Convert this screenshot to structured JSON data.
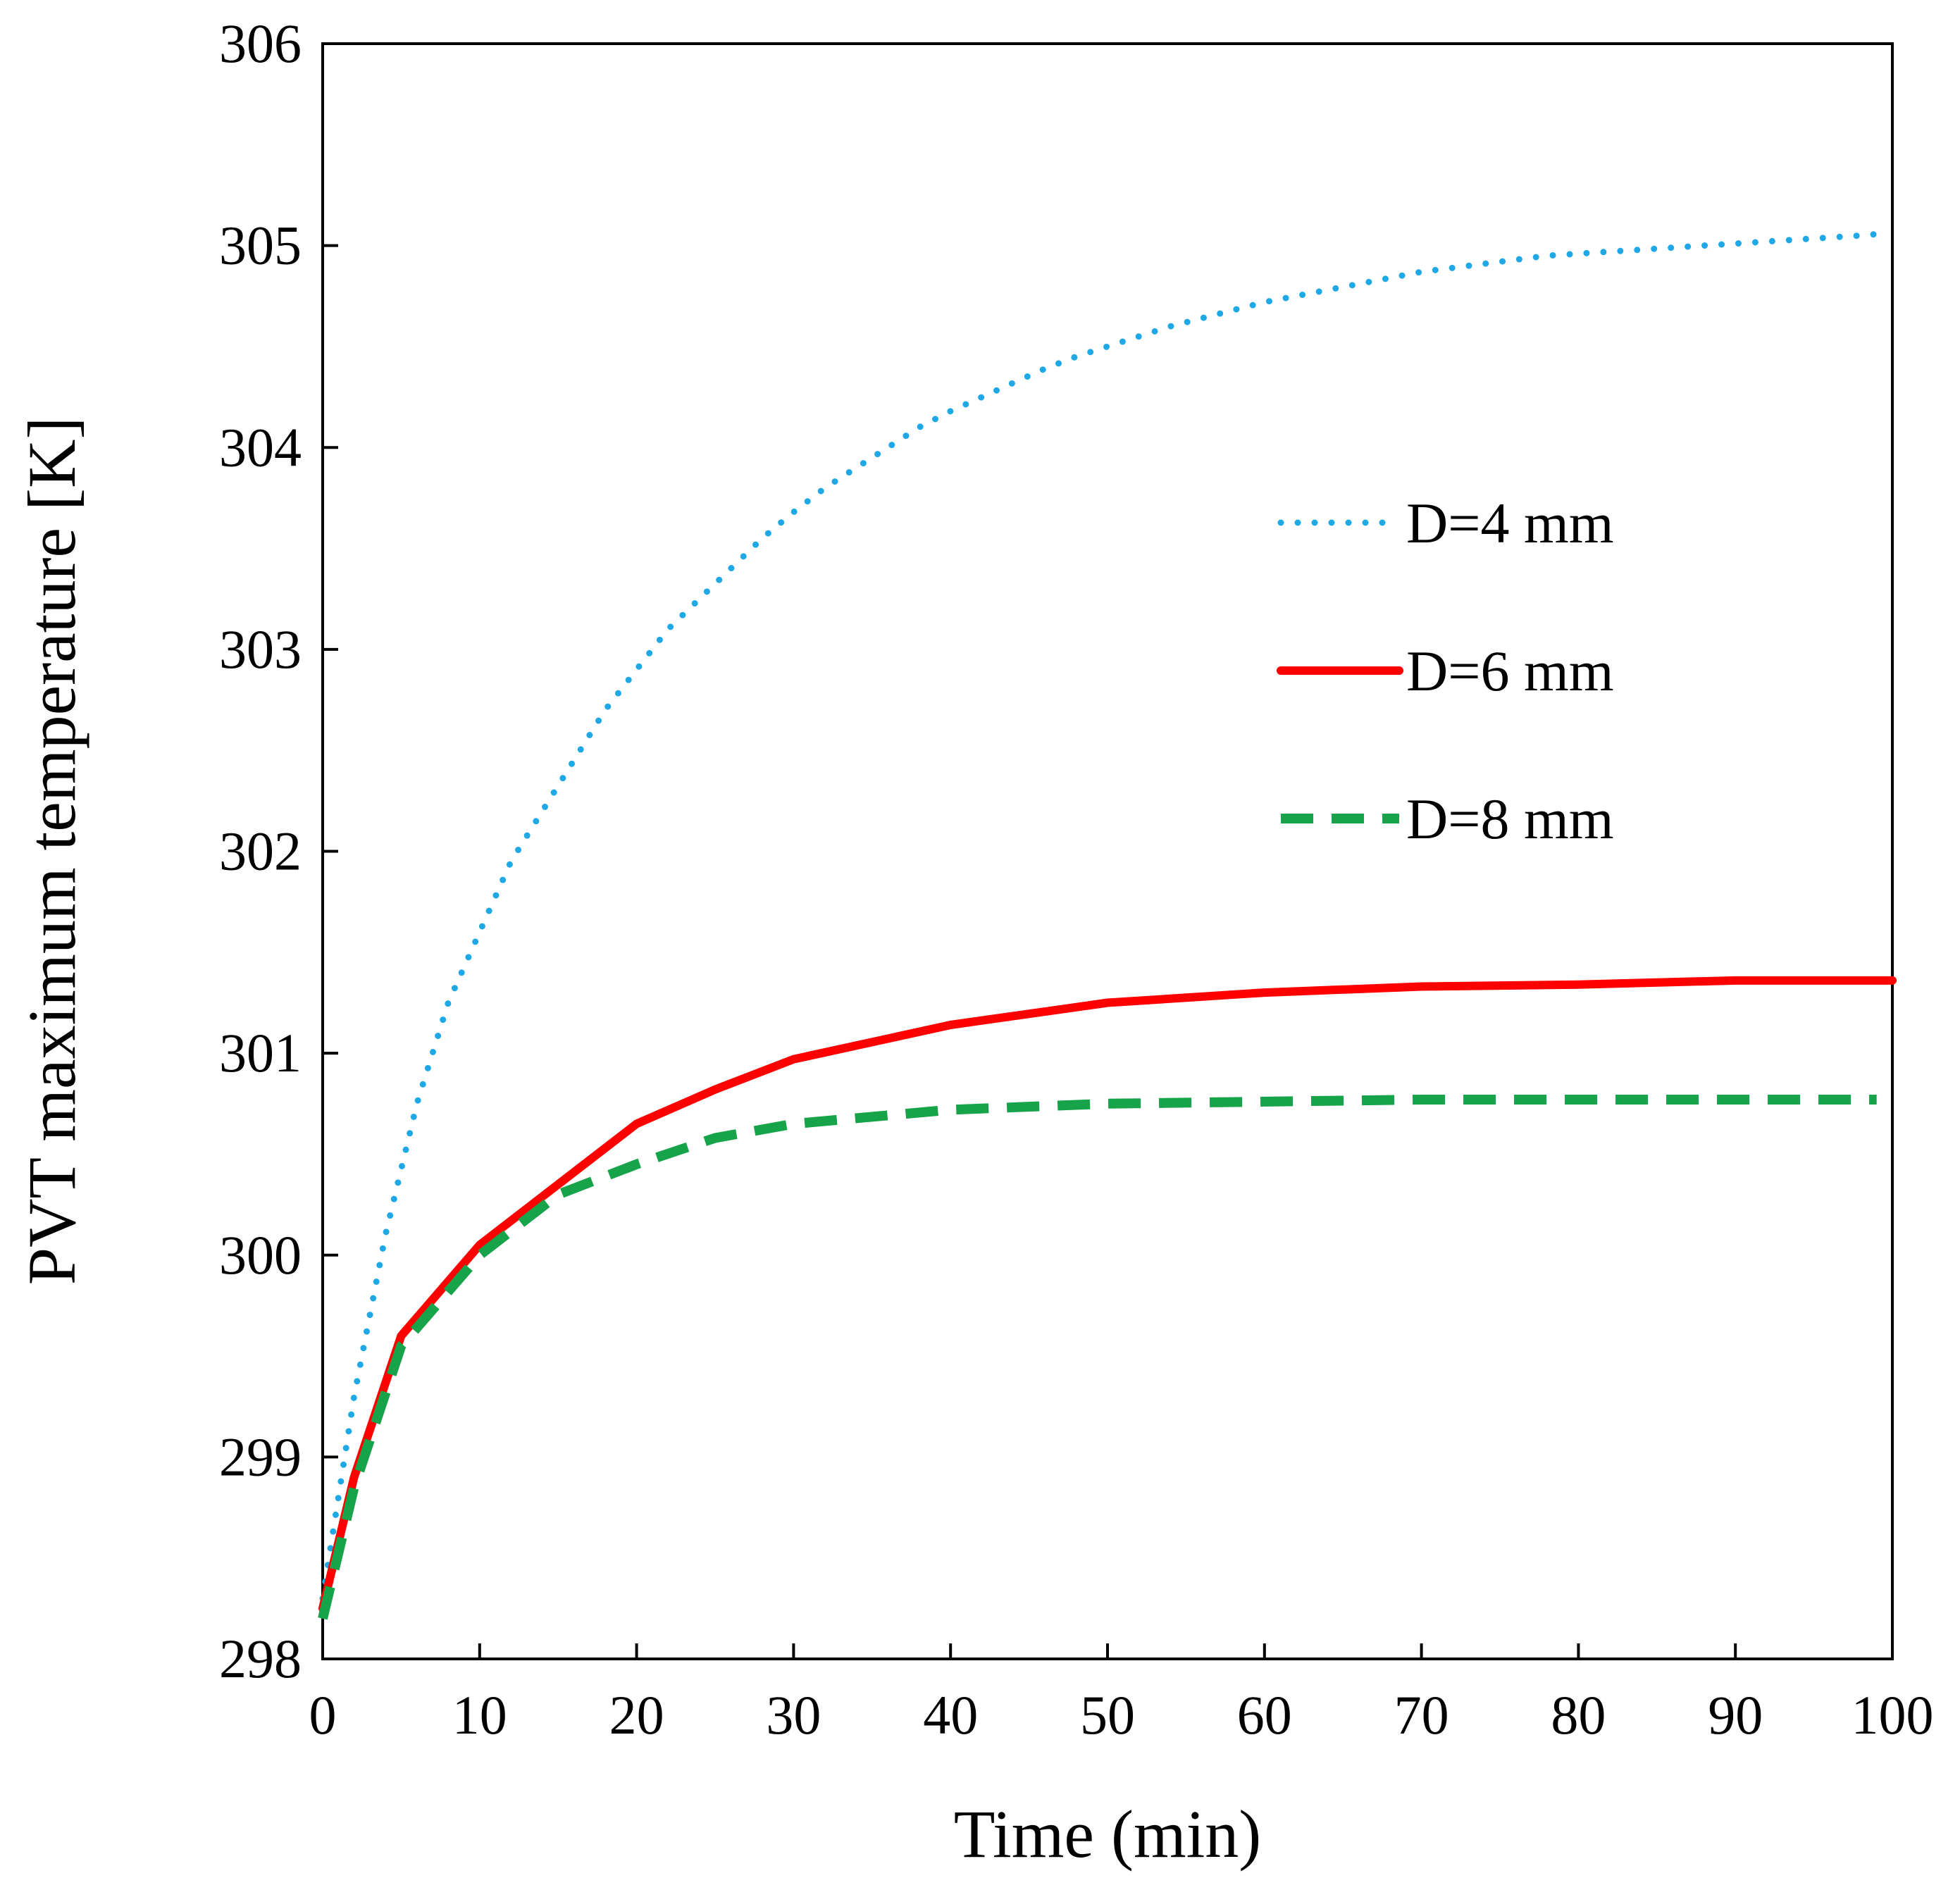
{
  "chart_data": {
    "type": "line",
    "xlabel": "Time (min)",
    "ylabel": "PVT maximum temperature [K]",
    "xlim": [
      0,
      100
    ],
    "ylim": [
      298,
      306
    ],
    "xticks": [
      0,
      10,
      20,
      30,
      40,
      50,
      60,
      70,
      80,
      90,
      100
    ],
    "yticks": [
      298,
      299,
      300,
      301,
      302,
      303,
      304,
      305,
      306
    ],
    "grid": false,
    "legend_position": "right",
    "series": [
      {
        "name": "D=4 mm",
        "color": "#1fa8e6",
        "style": "dotted",
        "x": [
          0,
          2,
          4,
          6,
          8,
          10,
          12,
          14,
          16,
          18,
          20,
          22,
          24,
          26,
          28,
          30,
          32,
          34,
          36,
          38,
          40,
          42,
          44,
          46,
          48,
          50,
          52,
          54,
          56,
          58,
          60,
          62,
          64,
          66,
          68,
          70,
          72,
          74,
          76,
          78,
          80,
          82,
          84,
          86,
          88,
          90,
          92,
          94,
          96,
          98,
          99.5
        ],
        "y": [
          298.3,
          299.3,
          300.1,
          300.75,
          301.25,
          301.6,
          301.95,
          302.2,
          302.45,
          302.7,
          302.9,
          303.1,
          303.25,
          303.4,
          303.55,
          303.68,
          303.8,
          303.9,
          304.0,
          304.1,
          304.18,
          304.25,
          304.32,
          304.39,
          304.45,
          304.5,
          304.55,
          304.6,
          304.64,
          304.68,
          304.72,
          304.75,
          304.78,
          304.81,
          304.84,
          304.87,
          304.89,
          304.91,
          304.93,
          304.95,
          304.96,
          304.97,
          304.98,
          304.99,
          305.0,
          305.01,
          305.02,
          305.03,
          305.04,
          305.05,
          305.06
        ]
      },
      {
        "name": "D=6 mm",
        "color": "#ff0000",
        "style": "solid",
        "x": [
          0,
          2,
          5,
          10,
          15,
          20,
          25,
          30,
          40,
          50,
          60,
          70,
          80,
          90,
          100
        ],
        "y": [
          298.25,
          298.9,
          299.6,
          300.05,
          300.35,
          300.65,
          300.82,
          300.97,
          301.14,
          301.25,
          301.3,
          301.33,
          301.34,
          301.36,
          301.36
        ]
      },
      {
        "name": "D=8 mm",
        "color": "#17a34a",
        "style": "dashed",
        "x": [
          0,
          2,
          5,
          10,
          15,
          20,
          25,
          30,
          40,
          50,
          60,
          70,
          80,
          90,
          99
        ],
        "y": [
          298.2,
          298.85,
          299.55,
          300.0,
          300.3,
          300.45,
          300.58,
          300.65,
          300.72,
          300.75,
          300.76,
          300.77,
          300.77,
          300.77,
          300.77
        ]
      }
    ]
  }
}
